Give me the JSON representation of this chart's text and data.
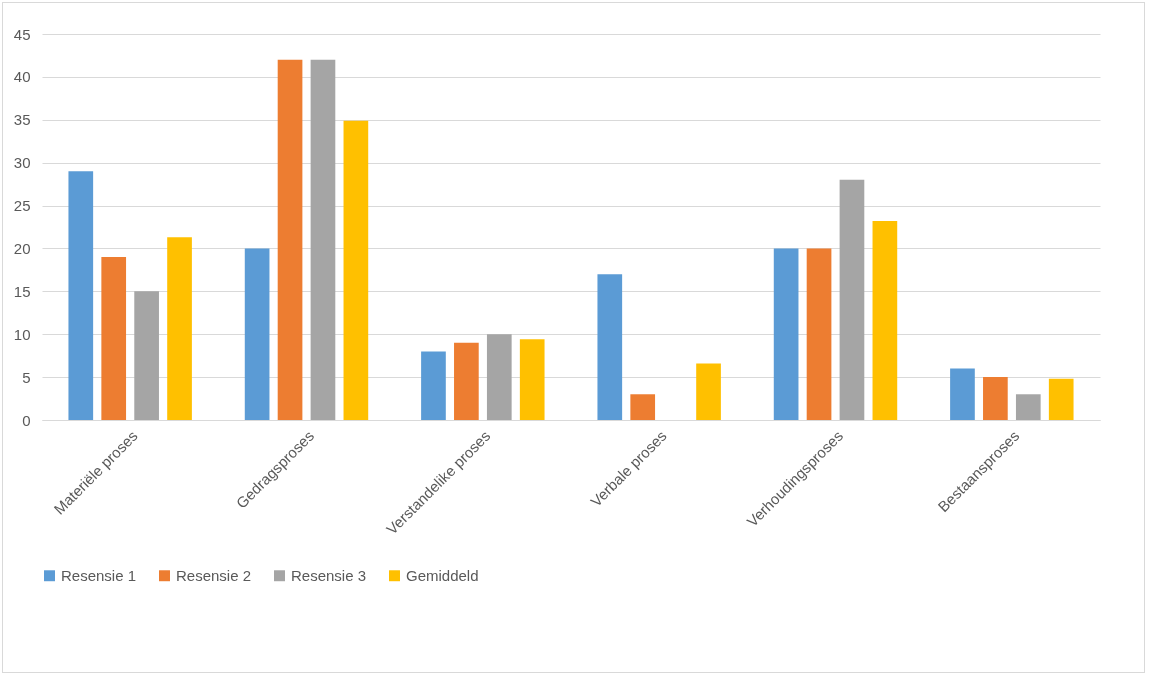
{
  "chart_data": {
    "type": "bar",
    "categories": [
      "Materiële proses",
      "Gedragsproses",
      "Verstandelike proses",
      "Verbale proses",
      "Verhoudingsproses",
      "Bestaansproses"
    ],
    "series": [
      {
        "name": "Resensie 1",
        "color": "#5b9bd5",
        "values": [
          29,
          20,
          8,
          17,
          20,
          6
        ]
      },
      {
        "name": "Resensie 2",
        "color": "#ed7d31",
        "values": [
          19,
          42,
          9,
          3,
          20,
          5
        ]
      },
      {
        "name": "Resensie 3",
        "color": "#a5a5a5",
        "values": [
          15,
          42,
          10,
          0,
          28,
          3
        ]
      },
      {
        "name": "Gemiddeld",
        "color": "#ffc000",
        "values": [
          21.3,
          34.9,
          9.4,
          6.6,
          23.2,
          4.8
        ]
      }
    ],
    "ylim": [
      0,
      45
    ],
    "yticks": [
      0,
      5,
      10,
      15,
      20,
      25,
      30,
      35,
      40,
      45
    ],
    "grid": "y",
    "legend": "bottom"
  }
}
